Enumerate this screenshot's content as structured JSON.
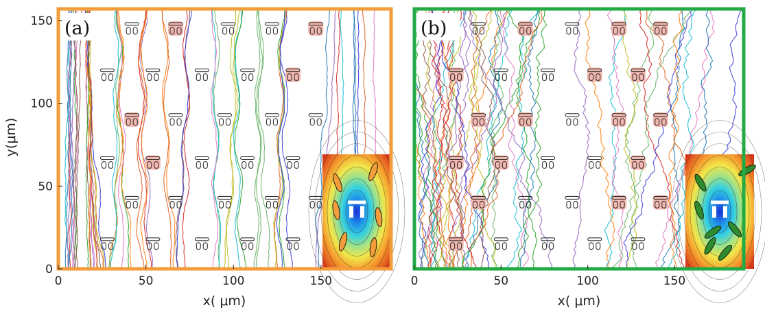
{
  "chart_data": [
    {
      "type": "line",
      "panel_label": "(a)",
      "description_kind": "particle trajectories through a pillar array",
      "frame_color": "#f39c3a",
      "xlabel": "x( μm)",
      "ylabel": "y(μm)",
      "xlim": [
        0,
        190
      ],
      "ylim": [
        0,
        157
      ],
      "xticks": [
        0,
        50,
        100,
        150
      ],
      "yticks": [
        0,
        50,
        100,
        150
      ],
      "trajectory_count": 60,
      "trajectory_style": "mostly vertical, deflected around obstacles",
      "obstacles": [
        {
          "x": 42,
          "y": 145,
          "highlight": false
        },
        {
          "x": 67,
          "y": 145,
          "highlight": true
        },
        {
          "x": 97,
          "y": 145,
          "highlight": false
        },
        {
          "x": 122,
          "y": 145,
          "highlight": false
        },
        {
          "x": 147,
          "y": 145,
          "highlight": true
        },
        {
          "x": 28,
          "y": 117,
          "highlight": false
        },
        {
          "x": 54,
          "y": 117,
          "highlight": false
        },
        {
          "x": 82,
          "y": 117,
          "highlight": false
        },
        {
          "x": 108,
          "y": 117,
          "highlight": false
        },
        {
          "x": 134,
          "y": 117,
          "highlight": true
        },
        {
          "x": 42,
          "y": 90,
          "highlight": true
        },
        {
          "x": 67,
          "y": 90,
          "highlight": false
        },
        {
          "x": 95,
          "y": 90,
          "highlight": false
        },
        {
          "x": 122,
          "y": 90,
          "highlight": false
        },
        {
          "x": 147,
          "y": 90,
          "highlight": false
        },
        {
          "x": 28,
          "y": 64,
          "highlight": false
        },
        {
          "x": 54,
          "y": 64,
          "highlight": true
        },
        {
          "x": 82,
          "y": 64,
          "highlight": false
        },
        {
          "x": 108,
          "y": 64,
          "highlight": false
        },
        {
          "x": 134,
          "y": 64,
          "highlight": false
        },
        {
          "x": 42,
          "y": 40,
          "highlight": false
        },
        {
          "x": 67,
          "y": 40,
          "highlight": false
        },
        {
          "x": 95,
          "y": 40,
          "highlight": false
        },
        {
          "x": 122,
          "y": 40,
          "highlight": false
        },
        {
          "x": 147,
          "y": 40,
          "highlight": false
        },
        {
          "x": 28,
          "y": 15,
          "highlight": false
        },
        {
          "x": 54,
          "y": 15,
          "highlight": false
        },
        {
          "x": 82,
          "y": 15,
          "highlight": false
        },
        {
          "x": 108,
          "y": 15,
          "highlight": false
        },
        {
          "x": 134,
          "y": 15,
          "highlight": false
        }
      ],
      "inset": {
        "colormap": "jet potential field",
        "particle_color": "#f39c3a"
      }
    },
    {
      "type": "line",
      "panel_label": "(b)",
      "description_kind": "particle trajectories through a pillar array",
      "frame_color": "#22aa44",
      "xlabel": "x( μm)",
      "ylabel": "",
      "xlim": [
        0,
        190
      ],
      "ylim": [
        0,
        157
      ],
      "xticks": [
        0,
        50,
        100,
        150
      ],
      "yticks": [],
      "trajectory_count": 55,
      "trajectory_style": "irregular, wandering across the array",
      "obstacles": [
        {
          "x": 37,
          "y": 145,
          "highlight": false
        },
        {
          "x": 64,
          "y": 145,
          "highlight": true
        },
        {
          "x": 91,
          "y": 145,
          "highlight": false
        },
        {
          "x": 118,
          "y": 145,
          "highlight": true
        },
        {
          "x": 142,
          "y": 145,
          "highlight": true
        },
        {
          "x": 24,
          "y": 117,
          "highlight": true
        },
        {
          "x": 50,
          "y": 117,
          "highlight": false
        },
        {
          "x": 77,
          "y": 117,
          "highlight": false
        },
        {
          "x": 104,
          "y": 117,
          "highlight": true
        },
        {
          "x": 129,
          "y": 117,
          "highlight": true
        },
        {
          "x": 37,
          "y": 90,
          "highlight": true
        },
        {
          "x": 64,
          "y": 90,
          "highlight": true
        },
        {
          "x": 91,
          "y": 90,
          "highlight": false
        },
        {
          "x": 118,
          "y": 90,
          "highlight": true
        },
        {
          "x": 142,
          "y": 90,
          "highlight": true
        },
        {
          "x": 24,
          "y": 64,
          "highlight": true
        },
        {
          "x": 50,
          "y": 64,
          "highlight": true
        },
        {
          "x": 77,
          "y": 64,
          "highlight": false
        },
        {
          "x": 104,
          "y": 64,
          "highlight": false
        },
        {
          "x": 129,
          "y": 64,
          "highlight": true
        },
        {
          "x": 37,
          "y": 40,
          "highlight": true
        },
        {
          "x": 64,
          "y": 40,
          "highlight": false
        },
        {
          "x": 91,
          "y": 40,
          "highlight": false
        },
        {
          "x": 118,
          "y": 40,
          "highlight": true
        },
        {
          "x": 142,
          "y": 40,
          "highlight": true
        },
        {
          "x": 24,
          "y": 15,
          "highlight": true
        },
        {
          "x": 50,
          "y": 15,
          "highlight": false
        },
        {
          "x": 77,
          "y": 15,
          "highlight": false
        },
        {
          "x": 104,
          "y": 15,
          "highlight": false
        },
        {
          "x": 129,
          "y": 15,
          "highlight": false
        }
      ],
      "inset": {
        "colormap": "jet potential field",
        "particle_color": "#2e8b2e"
      }
    }
  ],
  "trajectory_palette": [
    "#1f77b4",
    "#d62728",
    "#2ca02c",
    "#ff7f0e",
    "#9467bd",
    "#17becf",
    "#bcbd22",
    "#8c564b",
    "#e377c2",
    "#3b3bd6",
    "#66b366",
    "#e06020"
  ]
}
